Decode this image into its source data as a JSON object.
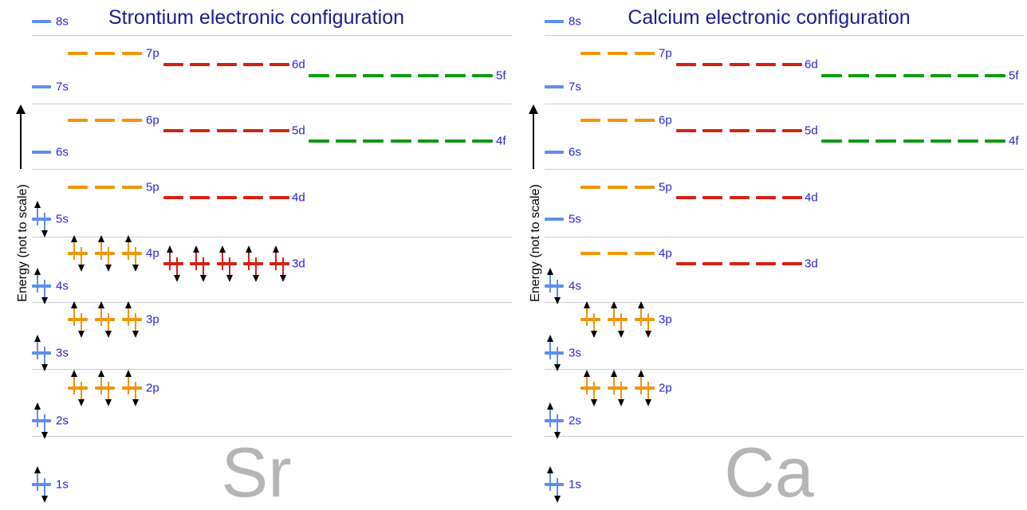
{
  "panels": [
    {
      "title": "Strontium electronic configuration",
      "element_symbol": "Sr",
      "energy_axis_label": "Energy (not to scale)",
      "orbitals": [
        {
          "label": "8s",
          "type": "s",
          "orbital_count": 1,
          "electrons": 0
        },
        {
          "label": "7p",
          "type": "p",
          "orbital_count": 3,
          "electrons": 0
        },
        {
          "label": "6d",
          "type": "d",
          "orbital_count": 5,
          "electrons": 0
        },
        {
          "label": "5f",
          "type": "f",
          "orbital_count": 7,
          "electrons": 0
        },
        {
          "label": "7s",
          "type": "s",
          "orbital_count": 1,
          "electrons": 0
        },
        {
          "label": "6p",
          "type": "p",
          "orbital_count": 3,
          "electrons": 0
        },
        {
          "label": "5d",
          "type": "d",
          "orbital_count": 5,
          "electrons": 0
        },
        {
          "label": "4f",
          "type": "f",
          "orbital_count": 7,
          "electrons": 0
        },
        {
          "label": "6s",
          "type": "s",
          "orbital_count": 1,
          "electrons": 0
        },
        {
          "label": "5p",
          "type": "p",
          "orbital_count": 3,
          "electrons": 0
        },
        {
          "label": "4d",
          "type": "d",
          "orbital_count": 5,
          "electrons": 0
        },
        {
          "label": "5s",
          "type": "s",
          "orbital_count": 1,
          "electrons": 2
        },
        {
          "label": "4p",
          "type": "p",
          "orbital_count": 3,
          "electrons": 6
        },
        {
          "label": "3d",
          "type": "d",
          "orbital_count": 5,
          "electrons": 10
        },
        {
          "label": "4s",
          "type": "s",
          "orbital_count": 1,
          "electrons": 2
        },
        {
          "label": "3p",
          "type": "p",
          "orbital_count": 3,
          "electrons": 6
        },
        {
          "label": "3s",
          "type": "s",
          "orbital_count": 1,
          "electrons": 2
        },
        {
          "label": "2p",
          "type": "p",
          "orbital_count": 3,
          "electrons": 6
        },
        {
          "label": "2s",
          "type": "s",
          "orbital_count": 1,
          "electrons": 2
        },
        {
          "label": "1s",
          "type": "s",
          "orbital_count": 1,
          "electrons": 2
        }
      ]
    },
    {
      "title": "Calcium electronic configuration",
      "element_symbol": "Ca",
      "energy_axis_label": "Energy (not to scale)",
      "orbitals": [
        {
          "label": "8s",
          "type": "s",
          "orbital_count": 1,
          "electrons": 0
        },
        {
          "label": "7p",
          "type": "p",
          "orbital_count": 3,
          "electrons": 0
        },
        {
          "label": "6d",
          "type": "d",
          "orbital_count": 5,
          "electrons": 0
        },
        {
          "label": "5f",
          "type": "f",
          "orbital_count": 7,
          "electrons": 0
        },
        {
          "label": "7s",
          "type": "s",
          "orbital_count": 1,
          "electrons": 0
        },
        {
          "label": "6p",
          "type": "p",
          "orbital_count": 3,
          "electrons": 0
        },
        {
          "label": "5d",
          "type": "d",
          "orbital_count": 5,
          "electrons": 0
        },
        {
          "label": "4f",
          "type": "f",
          "orbital_count": 7,
          "electrons": 0
        },
        {
          "label": "6s",
          "type": "s",
          "orbital_count": 1,
          "electrons": 0
        },
        {
          "label": "5p",
          "type": "p",
          "orbital_count": 3,
          "electrons": 0
        },
        {
          "label": "4d",
          "type": "d",
          "orbital_count": 5,
          "electrons": 0
        },
        {
          "label": "5s",
          "type": "s",
          "orbital_count": 1,
          "electrons": 0
        },
        {
          "label": "4p",
          "type": "p",
          "orbital_count": 3,
          "electrons": 0
        },
        {
          "label": "3d",
          "type": "d",
          "orbital_count": 5,
          "electrons": 0
        },
        {
          "label": "4s",
          "type": "s",
          "orbital_count": 1,
          "electrons": 2
        },
        {
          "label": "3p",
          "type": "p",
          "orbital_count": 3,
          "electrons": 6
        },
        {
          "label": "3s",
          "type": "s",
          "orbital_count": 1,
          "electrons": 2
        },
        {
          "label": "2p",
          "type": "p",
          "orbital_count": 3,
          "electrons": 6
        },
        {
          "label": "2s",
          "type": "s",
          "orbital_count": 1,
          "electrons": 2
        },
        {
          "label": "1s",
          "type": "s",
          "orbital_count": 1,
          "electrons": 2
        }
      ]
    }
  ],
  "colors": {
    "title": "#1c1c8f",
    "orbital_label": "#2525cf",
    "element_symbol": "#b5b5b5",
    "separator": "#cccccc",
    "electron_arrow": "#000000",
    "axis": "#000000",
    "s_orbital": "#5f8dea",
    "p_orbital": "#f09506",
    "d_orbital": "#d42113",
    "f_orbital": "#0f9913"
  }
}
